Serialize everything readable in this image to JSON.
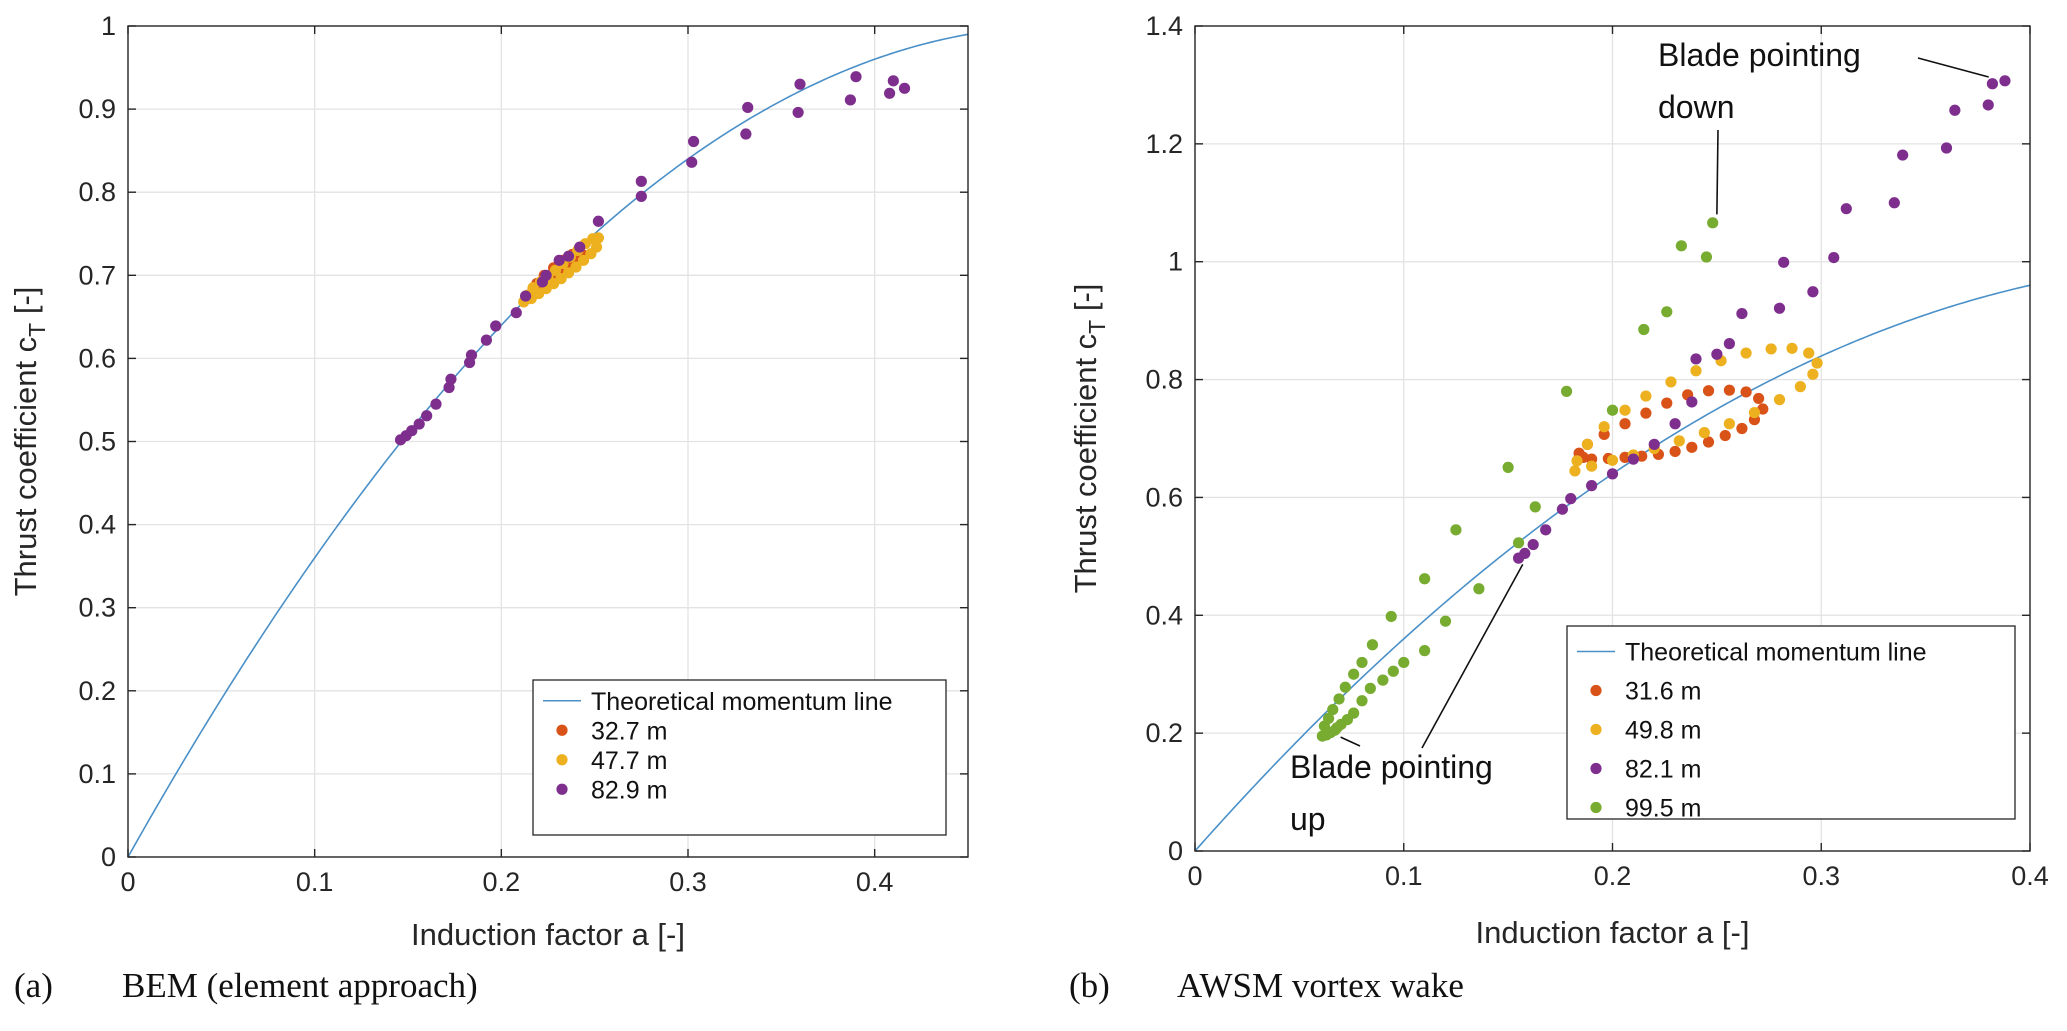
{
  "figure": {
    "captions": [
      {
        "tag": "(a)",
        "text": "BEM (element approach)"
      },
      {
        "tag": "(b)",
        "text": "AWSM vortex wake"
      }
    ]
  },
  "chart_data": [
    {
      "type": "scatter",
      "title": "",
      "xlabel": "Induction factor a [-]",
      "ylabel_main": "Thrust coefficient c",
      "ylabel_sub": "T",
      "ylabel_tail": " [-]",
      "xlim": [
        0,
        0.45
      ],
      "ylim": [
        0,
        1
      ],
      "xticks": [
        0,
        0.1,
        0.2,
        0.3,
        0.4
      ],
      "xtick_labels": [
        "0",
        "0.1",
        "0.2",
        "0.3",
        "0.4"
      ],
      "yticks": [
        0,
        0.1,
        0.2,
        0.3,
        0.4,
        0.5,
        0.6,
        0.7,
        0.8,
        0.9,
        1
      ],
      "ytick_labels": [
        "0",
        "0.1",
        "0.2",
        "0.3",
        "0.4",
        "0.5",
        "0.6",
        "0.7",
        "0.8",
        "0.9",
        "1"
      ],
      "grid": true,
      "legend_position": "bottom-right",
      "line": {
        "name": "Theoretical momentum line",
        "formula": "cT = 4a(1-a)",
        "color": "#4a90c8"
      },
      "series": [
        {
          "name": "32.7 m",
          "color": "#d95319",
          "x": [
            0.217,
            0.222,
            0.227,
            0.232,
            0.237,
            0.241,
            0.244,
            0.242,
            0.238,
            0.233,
            0.228,
            0.223,
            0.219
          ],
          "y": [
            0.683,
            0.69,
            0.697,
            0.704,
            0.711,
            0.718,
            0.724,
            0.728,
            0.725,
            0.718,
            0.709,
            0.7,
            0.69
          ]
        },
        {
          "name": "47.7 m",
          "color": "#edb120",
          "x": [
            0.212,
            0.216,
            0.22,
            0.224,
            0.228,
            0.232,
            0.236,
            0.24,
            0.244,
            0.248,
            0.251,
            0.252,
            0.249,
            0.245,
            0.241,
            0.237,
            0.233,
            0.229,
            0.225,
            0.221,
            0.217,
            0.214
          ],
          "y": [
            0.668,
            0.672,
            0.678,
            0.684,
            0.69,
            0.696,
            0.703,
            0.71,
            0.718,
            0.726,
            0.734,
            0.745,
            0.744,
            0.738,
            0.73,
            0.722,
            0.714,
            0.706,
            0.699,
            0.692,
            0.685,
            0.676
          ]
        },
        {
          "name": "82.9 m",
          "color": "#7e2f8e",
          "x": [
            0.146,
            0.149,
            0.152,
            0.156,
            0.16,
            0.165,
            0.172,
            0.173,
            0.183,
            0.184,
            0.192,
            0.197,
            0.208,
            0.213,
            0.222,
            0.224,
            0.231,
            0.236,
            0.242,
            0.252,
            0.275,
            0.275,
            0.302,
            0.303,
            0.331,
            0.332,
            0.359,
            0.36,
            0.387,
            0.39,
            0.408,
            0.41,
            0.416
          ],
          "y": [
            0.502,
            0.507,
            0.513,
            0.521,
            0.531,
            0.545,
            0.565,
            0.575,
            0.595,
            0.604,
            0.622,
            0.639,
            0.655,
            0.675,
            0.692,
            0.7,
            0.718,
            0.723,
            0.734,
            0.765,
            0.795,
            0.813,
            0.836,
            0.861,
            0.87,
            0.902,
            0.896,
            0.93,
            0.911,
            0.939,
            0.919,
            0.934,
            0.925
          ]
        }
      ]
    },
    {
      "type": "scatter",
      "title": "",
      "xlabel": "Induction factor a [-]",
      "ylabel_main": "Thrust coefficient c",
      "ylabel_sub": "T",
      "ylabel_tail": " [-]",
      "xlim": [
        0,
        0.4
      ],
      "ylim": [
        0,
        1.4
      ],
      "xticks": [
        0,
        0.1,
        0.2,
        0.3,
        0.4
      ],
      "xtick_labels": [
        "0",
        "0.1",
        "0.2",
        "0.3",
        "0.4"
      ],
      "yticks": [
        0,
        0.2,
        0.4,
        0.6,
        0.8,
        1.0,
        1.2,
        1.4
      ],
      "ytick_labels": [
        "0",
        "0.2",
        "0.4",
        "0.6",
        "0.8",
        "1",
        "1.2",
        "1.4"
      ],
      "grid": true,
      "legend_position": "bottom-right",
      "line": {
        "name": "Theoretical momentum line",
        "formula": "cT = 4a(1-a)",
        "color": "#4a90c8"
      },
      "series": [
        {
          "name": "31.6 m",
          "color": "#d95319",
          "x": [
            0.19,
            0.198,
            0.206,
            0.214,
            0.222,
            0.23,
            0.238,
            0.246,
            0.254,
            0.262,
            0.268,
            0.272,
            0.27,
            0.264,
            0.256,
            0.246,
            0.236,
            0.226,
            0.216,
            0.206,
            0.196,
            0.188,
            0.184,
            0.186
          ],
          "y": [
            0.665,
            0.666,
            0.668,
            0.67,
            0.673,
            0.678,
            0.685,
            0.694,
            0.705,
            0.717,
            0.732,
            0.75,
            0.768,
            0.779,
            0.782,
            0.781,
            0.774,
            0.76,
            0.743,
            0.725,
            0.707,
            0.69,
            0.675,
            0.668
          ]
        },
        {
          "name": "49.8 m",
          "color": "#edb120",
          "x": [
            0.182,
            0.19,
            0.2,
            0.21,
            0.22,
            0.232,
            0.244,
            0.256,
            0.268,
            0.28,
            0.29,
            0.296,
            0.298,
            0.294,
            0.286,
            0.276,
            0.264,
            0.252,
            0.24,
            0.228,
            0.216,
            0.206,
            0.196,
            0.188,
            0.183
          ],
          "y": [
            0.645,
            0.653,
            0.663,
            0.672,
            0.683,
            0.696,
            0.71,
            0.725,
            0.744,
            0.766,
            0.788,
            0.809,
            0.828,
            0.845,
            0.853,
            0.852,
            0.845,
            0.832,
            0.815,
            0.796,
            0.772,
            0.748,
            0.72,
            0.69,
            0.662
          ]
        },
        {
          "name": "82.1 m",
          "color": "#7e2f8e",
          "x": [
            0.155,
            0.158,
            0.162,
            0.168,
            0.176,
            0.18,
            0.19,
            0.2,
            0.21,
            0.22,
            0.23,
            0.238,
            0.24,
            0.25,
            0.256,
            0.262,
            0.28,
            0.282,
            0.296,
            0.306,
            0.312,
            0.335,
            0.339,
            0.36,
            0.364,
            0.38,
            0.382,
            0.388
          ],
          "y": [
            0.497,
            0.505,
            0.52,
            0.545,
            0.58,
            0.598,
            0.62,
            0.64,
            0.665,
            0.69,
            0.725,
            0.762,
            0.835,
            0.843,
            0.861,
            0.912,
            0.921,
            0.999,
            0.949,
            1.007,
            1.09,
            1.1,
            1.181,
            1.193,
            1.257,
            1.266,
            1.302,
            1.307
          ]
        },
        {
          "name": "99.5 m",
          "color": "#77ac30",
          "x": [
            0.061,
            0.063,
            0.065,
            0.067,
            0.068,
            0.07,
            0.073,
            0.076,
            0.08,
            0.084,
            0.09,
            0.095,
            0.1,
            0.11,
            0.12,
            0.136,
            0.062,
            0.064,
            0.066,
            0.069,
            0.072,
            0.076,
            0.08,
            0.085,
            0.094,
            0.11,
            0.125,
            0.15,
            0.155,
            0.163,
            0.178,
            0.2,
            0.226,
            0.233,
            0.245,
            0.248,
            0.215
          ],
          "y": [
            0.195,
            0.197,
            0.201,
            0.205,
            0.209,
            0.215,
            0.223,
            0.234,
            0.255,
            0.276,
            0.29,
            0.305,
            0.32,
            0.34,
            0.39,
            0.445,
            0.212,
            0.225,
            0.24,
            0.258,
            0.278,
            0.3,
            0.32,
            0.35,
            0.398,
            0.462,
            0.545,
            0.651,
            0.523,
            0.584,
            0.78,
            0.748,
            0.915,
            1.027,
            1.008,
            1.066,
            0.885
          ]
        }
      ],
      "annotations": [
        {
          "text_lines": [
            "Blade pointing",
            "down"
          ],
          "target": [
            0.25,
            1.06
          ]
        },
        {
          "text_lines": [
            "Blade pointing",
            "up"
          ],
          "target": [
            0.064,
            0.2
          ],
          "target2": [
            0.157,
            0.5
          ]
        },
        {
          "leader_only": true,
          "target": [
            0.385,
            1.31
          ]
        }
      ]
    }
  ]
}
